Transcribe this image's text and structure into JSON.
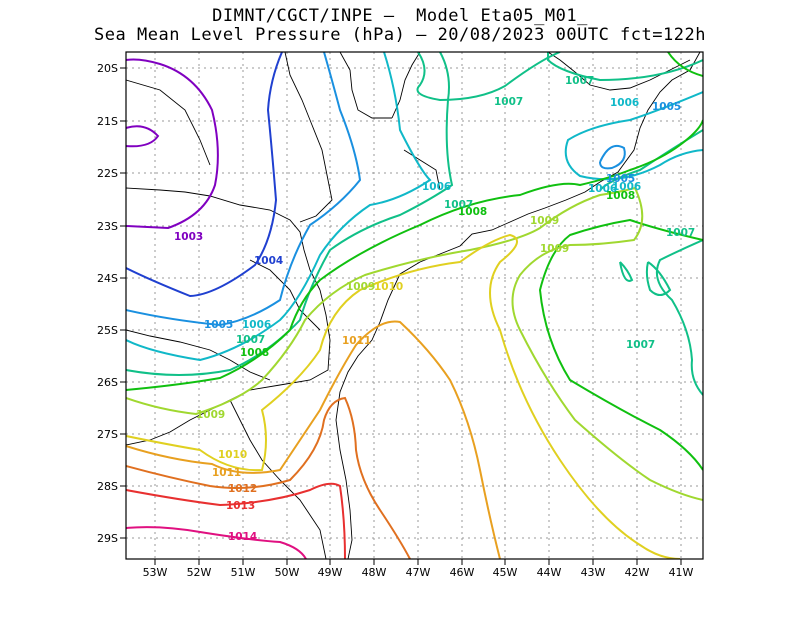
{
  "title_line1": "DIMNT/CGCT/INPE –  Model Eta05_M01_",
  "title_line2": "Sea Mean Level Pressure (hPa) – 20/08/2023 00UTC fct=122h",
  "map": {
    "lon_range": [
      -53.7,
      -40.5
    ],
    "lat_range": [
      -29.4,
      -19.7
    ],
    "x_ticks": [
      "53W",
      "52W",
      "51W",
      "50W",
      "49W",
      "48W",
      "47W",
      "46W",
      "45W",
      "44W",
      "43W",
      "42W",
      "41W"
    ],
    "y_ticks": [
      "20S",
      "21S",
      "22S",
      "23S",
      "24S",
      "25S",
      "26S",
      "27S",
      "28S",
      "29S"
    ],
    "grid": "dotted",
    "units": "hPa"
  },
  "contour_labels": [
    {
      "text": "1003",
      "color": "#8000c0"
    },
    {
      "text": "1004",
      "color": "#2040d0"
    },
    {
      "text": "1005",
      "color": "#1a90e0"
    },
    {
      "text": "1006",
      "color": "#10b8c8"
    },
    {
      "text": "1007",
      "color": "#10c088"
    },
    {
      "text": "1008",
      "color": "#10c010"
    },
    {
      "text": "1009",
      "color": "#a0d830"
    },
    {
      "text": "1010",
      "color": "#e0d020"
    },
    {
      "text": "1011",
      "color": "#e8a020"
    },
    {
      "text": "1012",
      "color": "#e07020"
    },
    {
      "text": "1013",
      "color": "#e83030"
    },
    {
      "text": "1014",
      "color": "#e01080"
    }
  ]
}
